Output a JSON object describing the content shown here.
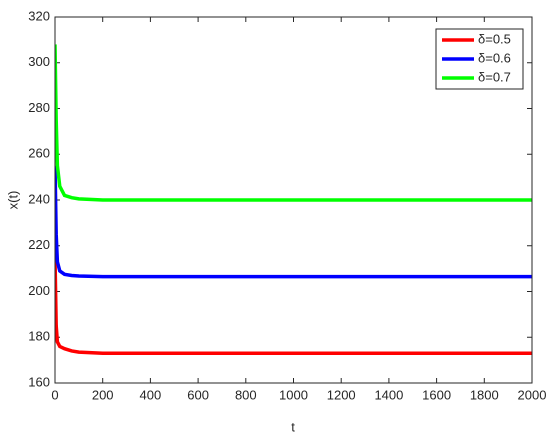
{
  "chart_data": {
    "type": "line",
    "xlabel": "t",
    "ylabel": "x(t)",
    "x": [
      0,
      5,
      10,
      20,
      40,
      70,
      100,
      200,
      500,
      1000,
      1500,
      2000
    ],
    "series": [
      {
        "name": "δ=0.5",
        "color": "#ff0000",
        "values": [
          215,
          185,
          178,
          176,
          175,
          174,
          173.5,
          173,
          173,
          173,
          173,
          173
        ]
      },
      {
        "name": "δ=0.6",
        "color": "#0000ff",
        "values": [
          255,
          225,
          213,
          209,
          207.5,
          207,
          206.8,
          206.5,
          206.5,
          206.5,
          206.5,
          206.5
        ]
      },
      {
        "name": "δ=0.7",
        "color": "#00ff00",
        "values": [
          308,
          275,
          255,
          246,
          242,
          241,
          240.5,
          240,
          240,
          240,
          240,
          240
        ]
      }
    ],
    "xlim": [
      0,
      2000
    ],
    "xticks": [
      0,
      200,
      400,
      600,
      800,
      1000,
      1200,
      1400,
      1600,
      1800,
      2000
    ],
    "ylim": [
      160,
      320
    ],
    "yticks": [
      160,
      180,
      200,
      220,
      240,
      260,
      280,
      300,
      320
    ],
    "legend": "top-right"
  }
}
